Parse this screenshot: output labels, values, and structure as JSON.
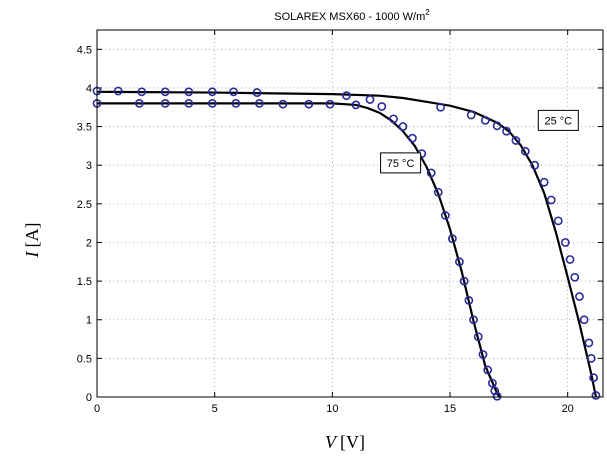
{
  "chart_data": {
    "type": "scatter",
    "title": "SOLAREX MSX60 - 1000 W/m",
    "title_superscript": "2",
    "xlabel_symbol": "V",
    "xlabel_unit": "[V]",
    "ylabel_symbol": "I",
    "ylabel_unit": "[A]",
    "xlim": [
      0,
      21.5
    ],
    "ylim": [
      0,
      4.75
    ],
    "xticks": [
      0,
      5,
      10,
      15,
      20
    ],
    "yticks": [
      0,
      0.5,
      1,
      1.5,
      2,
      2.5,
      3,
      3.5,
      4,
      4.5
    ],
    "grid": true,
    "colors": {
      "measured": "#2a2a9a",
      "model": "#000000"
    },
    "annotations": [
      {
        "text": "25 °C",
        "x": 19.6,
        "y": 3.58
      },
      {
        "text": "75 °C",
        "x": 12.9,
        "y": 3.03
      }
    ],
    "series": [
      {
        "temperature": "25 °C",
        "model_curve": {
          "x": [
            0,
            5,
            10,
            12,
            13,
            14,
            15,
            16,
            17,
            17.5,
            18,
            18.5,
            19,
            19.5,
            20,
            20.5,
            21,
            21.2
          ],
          "y": [
            3.95,
            3.94,
            3.92,
            3.9,
            3.87,
            3.82,
            3.77,
            3.69,
            3.55,
            3.44,
            3.26,
            3.0,
            2.64,
            2.13,
            1.55,
            0.95,
            0.3,
            0.0
          ]
        },
        "measured_points": {
          "x": [
            0,
            0.9,
            1.9,
            2.9,
            3.9,
            4.9,
            5.8,
            6.8,
            10.6,
            11.6,
            14.6,
            15.9,
            16.5,
            17.0,
            17.4,
            17.8,
            18.2,
            18.6,
            19.0,
            19.3,
            19.6,
            19.9,
            20.1,
            20.3,
            20.5,
            20.7,
            20.9,
            21.0,
            21.1,
            21.2
          ],
          "y": [
            3.96,
            3.96,
            3.95,
            3.95,
            3.95,
            3.95,
            3.95,
            3.94,
            3.9,
            3.85,
            3.75,
            3.65,
            3.58,
            3.51,
            3.44,
            3.32,
            3.18,
            3.0,
            2.78,
            2.55,
            2.28,
            2.0,
            1.78,
            1.55,
            1.3,
            1.0,
            0.7,
            0.5,
            0.25,
            0.02
          ]
        }
      },
      {
        "temperature": "75 °C",
        "model_curve": {
          "x": [
            0,
            5,
            10,
            11,
            11.5,
            12,
            12.5,
            13,
            13.5,
            14,
            14.5,
            15,
            15.5,
            16,
            16.5,
            17,
            17.1
          ],
          "y": [
            3.8,
            3.8,
            3.8,
            3.78,
            3.74,
            3.68,
            3.58,
            3.44,
            3.25,
            2.98,
            2.63,
            2.17,
            1.62,
            0.98,
            0.4,
            0.05,
            0.0
          ]
        },
        "measured_points": {
          "x": [
            0,
            1.8,
            2.9,
            3.9,
            4.9,
            5.9,
            6.9,
            7.9,
            9.0,
            9.9,
            11.0,
            12.1,
            12.6,
            13.0,
            13.4,
            13.8,
            14.2,
            14.5,
            14.8,
            15.1,
            15.4,
            15.6,
            15.8,
            16.0,
            16.2,
            16.4,
            16.6,
            16.8,
            16.9,
            17.0
          ],
          "y": [
            3.8,
            3.8,
            3.8,
            3.8,
            3.8,
            3.8,
            3.8,
            3.79,
            3.79,
            3.79,
            3.78,
            3.76,
            3.6,
            3.5,
            3.35,
            3.15,
            2.9,
            2.65,
            2.35,
            2.05,
            1.75,
            1.5,
            1.25,
            1.0,
            0.78,
            0.55,
            0.35,
            0.18,
            0.08,
            0.01
          ]
        }
      }
    ]
  }
}
